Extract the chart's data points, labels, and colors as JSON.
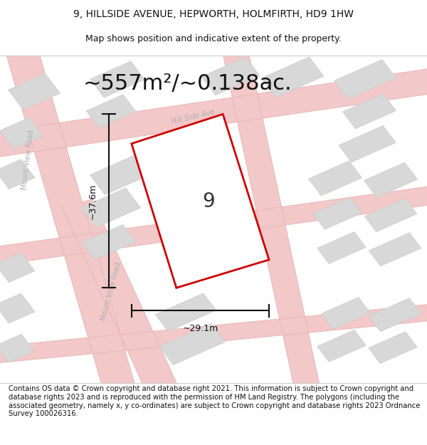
{
  "title_line1": "9, HILLSIDE AVENUE, HEPWORTH, HOLMFIRTH, HD9 1HW",
  "title_line2": "Map shows position and indicative extent of the property.",
  "area_text": "~557m²/~0.138ac.",
  "dim_width": "~29.1m",
  "dim_height": "~37.6m",
  "property_number": "9",
  "footer_text": "Contains OS data © Crown copyright and database right 2021. This information is subject to Crown copyright and database rights 2023 and is reproduced with the permission of HM Land Registry. The polygons (including the associated geometry, namely x, y co-ordinates) are subject to Crown copyright and database rights 2023 Ordnance Survey 100026316.",
  "map_bg": "#f7f7f7",
  "road_color": "#f2c8c8",
  "building_color": "#d8d8d8",
  "building_edge": "#cccccc",
  "property_fill": "#ffffff",
  "property_edge": "#cc0000",
  "dim_line_color": "#111111",
  "road_label_color": "#b0b0b0",
  "title_color": "#111111",
  "footer_color": "#111111",
  "title_fontsize": 10,
  "subtitle_fontsize": 9,
  "area_fontsize": 22,
  "dim_fontsize": 9,
  "footer_fontsize": 7.2,
  "number_fontsize": 20,
  "road_label_fontsize": 7
}
